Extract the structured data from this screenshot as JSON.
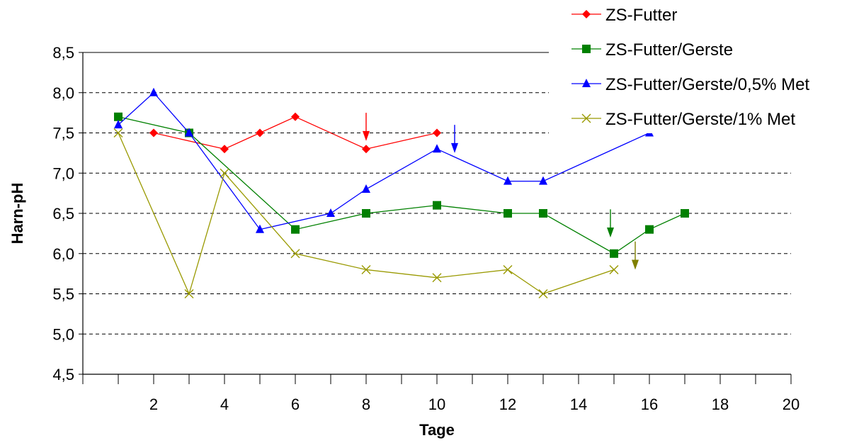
{
  "chart_data": {
    "type": "line",
    "title": "",
    "xlabel": "Tage",
    "ylabel": "Harn-pH",
    "xlim": [
      0,
      20
    ],
    "ylim": [
      4.5,
      8.5
    ],
    "xticks": [
      2,
      4,
      6,
      8,
      10,
      12,
      14,
      16,
      18,
      20
    ],
    "xtick_labels": [
      "2",
      "4",
      "6",
      "8",
      "10",
      "12",
      "14",
      "16",
      "18",
      "20"
    ],
    "yticks": [
      4.5,
      5.0,
      5.5,
      6.0,
      6.5,
      7.0,
      7.5,
      8.0,
      8.5
    ],
    "ytick_labels": [
      "4,5",
      "5,0",
      "5,5",
      "6,0",
      "6,5",
      "7,0",
      "7,5",
      "8,0",
      "8,5"
    ],
    "grid": "horizontal dashed",
    "legend_position": "top-right",
    "series": [
      {
        "name": "ZS-Futter",
        "color": "#ff0000",
        "marker": "diamond",
        "points": [
          [
            2,
            7.5
          ],
          [
            4,
            7.3
          ],
          [
            5,
            7.5
          ],
          [
            6,
            7.7
          ],
          [
            8,
            7.3
          ],
          [
            10,
            7.5
          ]
        ]
      },
      {
        "name": "ZS-Futter/Gerste",
        "color": "#008000",
        "marker": "square",
        "points": [
          [
            1,
            7.7
          ],
          [
            3,
            7.5
          ],
          [
            6,
            6.3
          ],
          [
            8,
            6.5
          ],
          [
            10,
            6.6
          ],
          [
            12,
            6.5
          ],
          [
            13,
            6.5
          ],
          [
            15,
            6.0
          ],
          [
            16,
            6.3
          ],
          [
            17,
            6.5
          ]
        ]
      },
      {
        "name": "ZS-Futter/Gerste/0,5% Met",
        "color": "#0000ff",
        "marker": "triangle",
        "points": [
          [
            1,
            7.6
          ],
          [
            2,
            8.0
          ],
          [
            3,
            7.5
          ],
          [
            5,
            6.3
          ],
          [
            7,
            6.5
          ],
          [
            8,
            6.8
          ],
          [
            10,
            7.3
          ],
          [
            12,
            6.9
          ],
          [
            13,
            6.9
          ],
          [
            16,
            7.5
          ]
        ]
      },
      {
        "name": "ZS-Futter/Gerste/1% Met",
        "color": "#999900",
        "marker": "x",
        "points": [
          [
            1,
            7.5
          ],
          [
            3,
            5.5
          ],
          [
            4,
            7.0
          ],
          [
            6,
            6.0
          ],
          [
            8,
            5.8
          ],
          [
            10,
            5.7
          ],
          [
            12,
            5.8
          ],
          [
            13,
            5.5
          ],
          [
            15,
            5.8
          ]
        ]
      }
    ],
    "annotations": [
      {
        "type": "arrow",
        "x": 8.0,
        "y_from": 7.75,
        "y_to": 7.4,
        "color": "#ff0000"
      },
      {
        "type": "arrow",
        "x": 10.5,
        "y_from": 7.6,
        "y_to": 7.25,
        "color": "#0000ff"
      },
      {
        "type": "arrow",
        "x": 14.9,
        "y_from": 6.55,
        "y_to": 6.2,
        "color": "#008000"
      },
      {
        "type": "arrow",
        "x": 15.6,
        "y_from": 6.15,
        "y_to": 5.8,
        "color": "#808000"
      }
    ]
  }
}
